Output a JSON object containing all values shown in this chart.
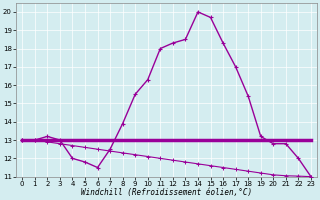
{
  "background_color": "#d4edf0",
  "line_color": "#990099",
  "xlim": [
    -0.5,
    23.5
  ],
  "ylim": [
    11,
    20.5
  ],
  "yticks": [
    11,
    12,
    13,
    14,
    15,
    16,
    17,
    18,
    19,
    20
  ],
  "xticks": [
    0,
    1,
    2,
    3,
    4,
    5,
    6,
    7,
    8,
    9,
    10,
    11,
    12,
    13,
    14,
    15,
    16,
    17,
    18,
    19,
    20,
    21,
    22,
    23
  ],
  "xlabel": "Windchill (Refroidissement éolien,°C)",
  "line1_y": [
    13,
    13,
    13,
    13,
    13,
    13,
    13,
    13,
    13,
    13,
    13,
    13,
    13,
    13,
    13,
    13,
    13,
    13,
    13,
    13,
    13,
    13,
    13,
    13
  ],
  "line1_linewidth": 2.5,
  "line2_y": [
    13,
    13,
    13.2,
    13,
    12,
    11.8,
    11.5,
    12.5,
    13.9,
    15.5,
    16.3,
    18.0,
    18.3,
    18.5,
    20.0,
    19.7,
    18.3,
    17.0,
    15.4,
    13.2,
    12.8,
    12.8,
    12.0,
    11.0
  ],
  "line2_linewidth": 1.0,
  "line3_y": [
    13.0,
    13.0,
    12.9,
    12.8,
    12.7,
    12.6,
    12.5,
    12.4,
    12.3,
    12.2,
    12.1,
    12.0,
    11.9,
    11.8,
    11.7,
    11.6,
    11.5,
    11.4,
    11.3,
    11.2,
    11.1,
    11.05,
    11.03,
    11.0
  ],
  "line3_linewidth": 0.8,
  "marker_size": 3,
  "marker_style": "+",
  "tick_labelsize": 5.0,
  "xlabel_fontsize": 5.5,
  "grid_color": "#ffffff",
  "grid_linewidth": 0.5,
  "figsize": [
    3.2,
    2.0
  ],
  "dpi": 100
}
